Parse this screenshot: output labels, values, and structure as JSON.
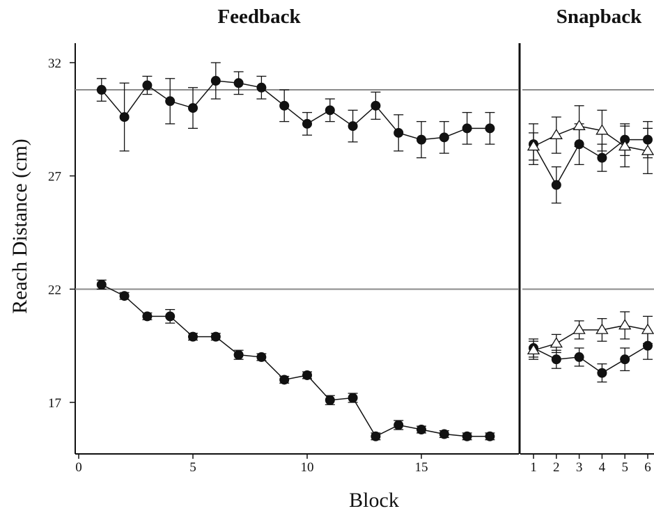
{
  "chart_data": [
    {
      "type": "scatter",
      "title": "Feedback",
      "xlabel": "Block",
      "ylabel": "Reach Distance (cm)",
      "xlim": [
        0,
        18.5
      ],
      "ylim": [
        14,
        34
      ],
      "x_ticks": [
        0,
        5,
        10,
        15
      ],
      "y_ticks": [
        17,
        22,
        27,
        32
      ],
      "reference_lines": [
        22,
        30.8
      ],
      "series": [
        {
          "marker": "filled-circle",
          "x": [
            1,
            2,
            3,
            4,
            5,
            6,
            7,
            8,
            9,
            10,
            11,
            12,
            13,
            14,
            15,
            16,
            17,
            18
          ],
          "y": [
            30.8,
            29.6,
            31.0,
            30.3,
            30.0,
            31.2,
            31.1,
            30.9,
            30.1,
            29.3,
            29.9,
            29.2,
            30.1,
            28.9,
            28.6,
            28.7,
            29.1,
            29.1
          ],
          "error": [
            0.5,
            1.5,
            0.4,
            1.0,
            0.9,
            0.8,
            0.5,
            0.5,
            0.7,
            0.5,
            0.5,
            0.7,
            0.6,
            0.8,
            0.8,
            0.7,
            0.7,
            0.7
          ]
        },
        {
          "marker": "filled-circle",
          "x": [
            1,
            2,
            3,
            4,
            5,
            6,
            7,
            8,
            9,
            10,
            11,
            12,
            13,
            14,
            15,
            16,
            17,
            18
          ],
          "y": [
            22.2,
            21.7,
            20.8,
            20.8,
            19.9,
            19.9,
            19.1,
            19.0,
            18.0,
            18.2,
            17.1,
            17.2,
            15.5,
            16.0,
            15.8,
            15.6,
            15.5,
            15.5
          ],
          "error": [
            0.2,
            0.15,
            0.15,
            0.3,
            0.15,
            0.15,
            0.2,
            0.15,
            0.15,
            0.15,
            0.2,
            0.2,
            0.15,
            0.2,
            0.15,
            0.15,
            0.15,
            0.15
          ]
        }
      ]
    },
    {
      "type": "scatter",
      "title": "Snapback",
      "xlim": [
        0.5,
        6.3
      ],
      "ylim": [
        14,
        34
      ],
      "x_ticks": [
        1,
        2,
        3,
        4,
        5,
        6
      ],
      "reference_lines": [
        22,
        30.8
      ],
      "series": [
        {
          "marker": "filled-circle",
          "x": [
            1,
            2,
            3,
            4,
            5,
            6
          ],
          "y": [
            28.4,
            26.6,
            28.4,
            27.8,
            28.6,
            28.6
          ],
          "error": [
            0.9,
            0.8,
            0.9,
            0.6,
            0.7,
            0.8
          ]
        },
        {
          "marker": "open-triangle",
          "x": [
            1,
            2,
            3,
            4,
            5,
            6
          ],
          "y": [
            28.3,
            28.8,
            29.2,
            29.0,
            28.3,
            28.1
          ],
          "error": [
            0.6,
            0.8,
            0.9,
            0.9,
            0.9,
            1.0
          ]
        },
        {
          "marker": "filled-circle",
          "x": [
            1,
            2,
            3,
            4,
            5,
            6
          ],
          "y": [
            19.4,
            18.9,
            19.0,
            18.3,
            18.9,
            19.5
          ],
          "error": [
            0.4,
            0.4,
            0.4,
            0.4,
            0.5,
            0.6
          ]
        },
        {
          "marker": "open-triangle",
          "x": [
            1,
            2,
            3,
            4,
            5,
            6
          ],
          "y": [
            19.3,
            19.6,
            20.2,
            20.2,
            20.4,
            20.2
          ],
          "error": [
            0.4,
            0.4,
            0.4,
            0.5,
            0.6,
            0.6
          ]
        }
      ]
    }
  ]
}
